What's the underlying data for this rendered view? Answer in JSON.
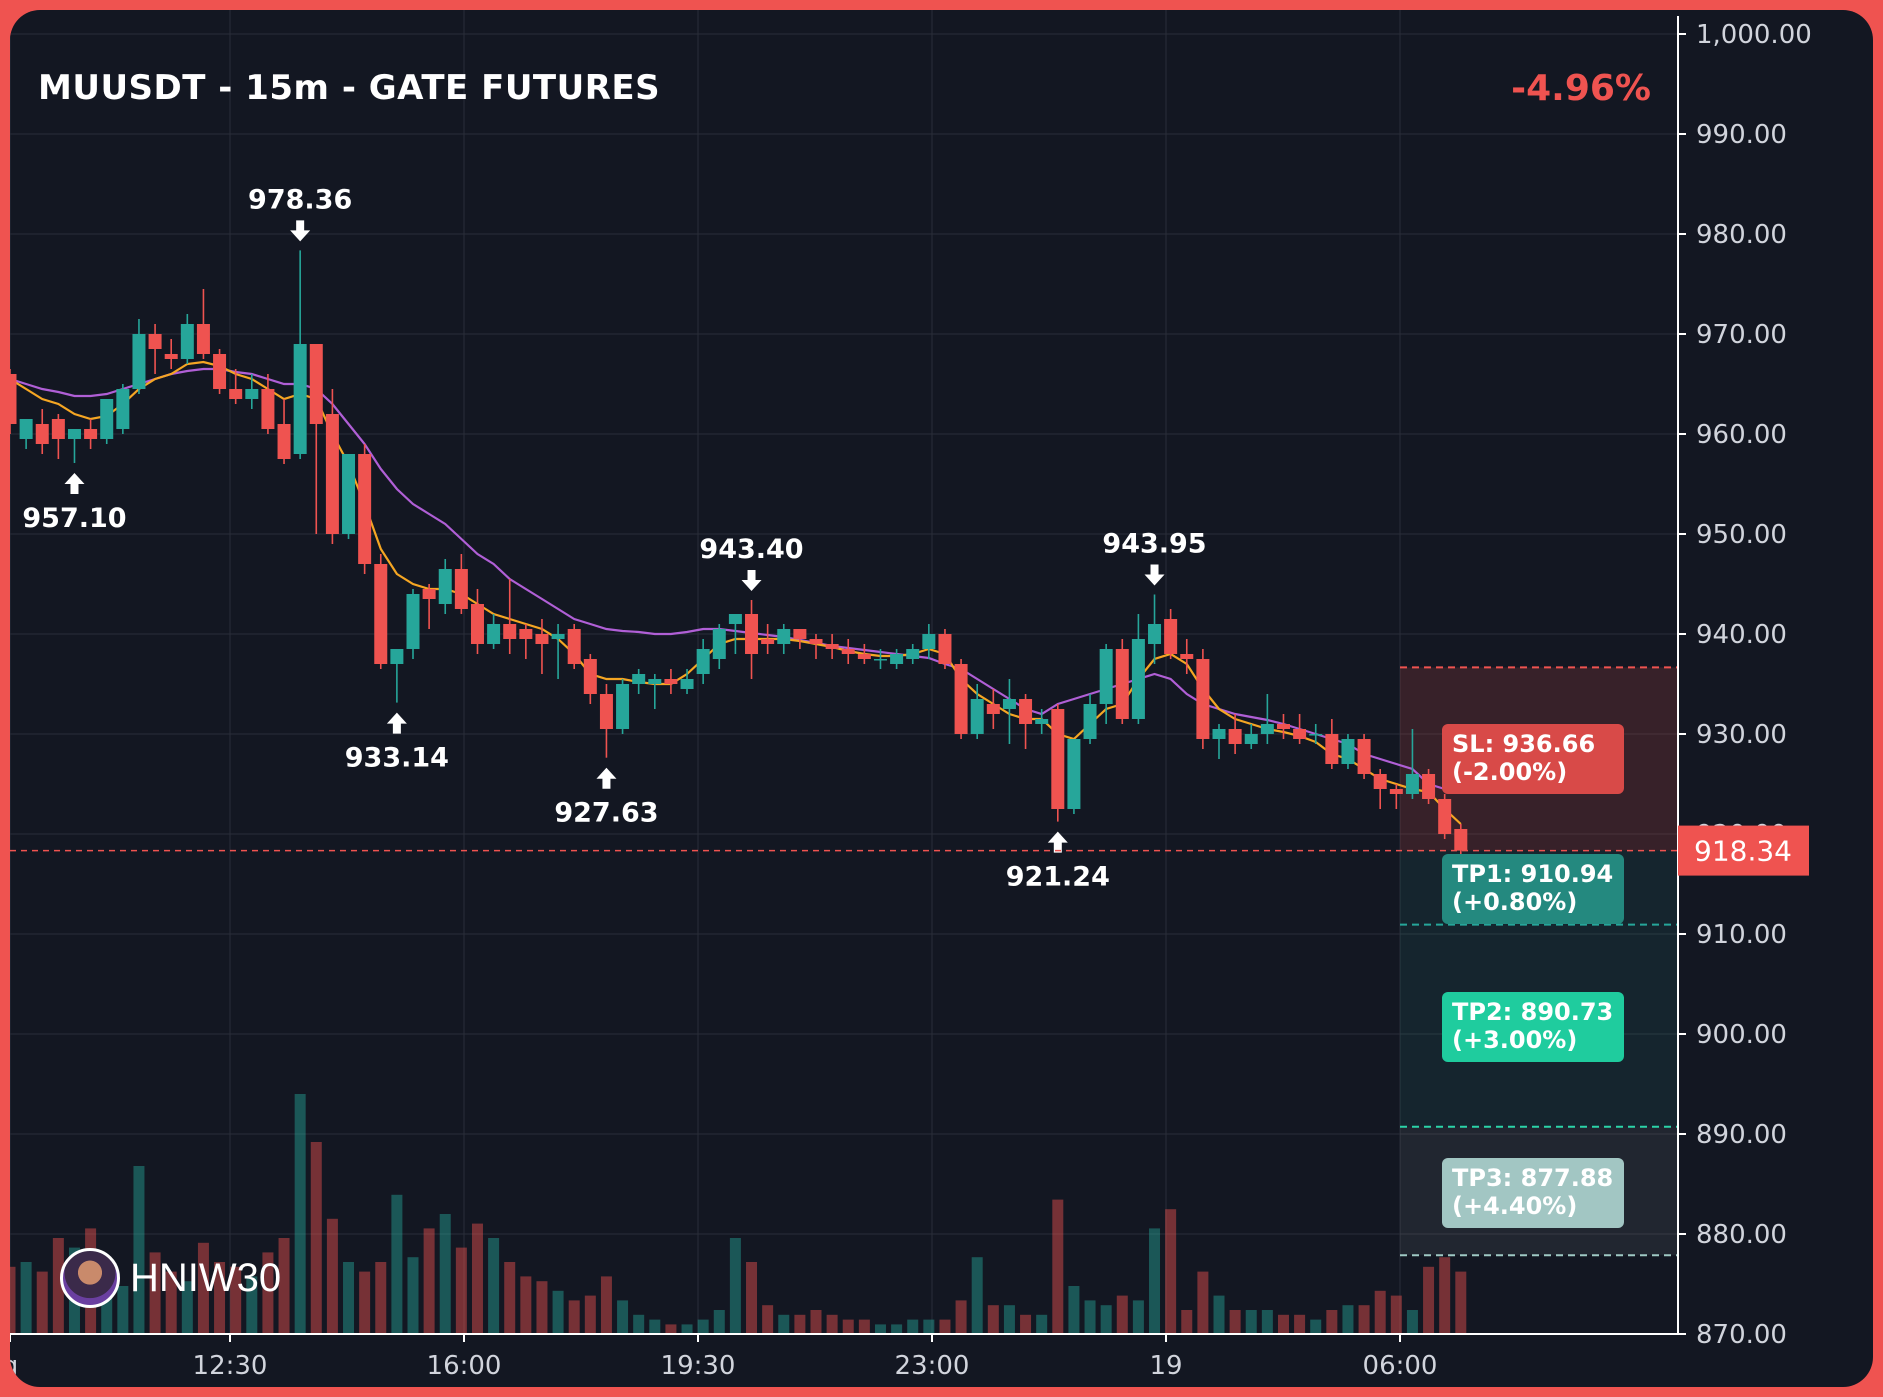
{
  "header": {
    "title": "MUUSDT - 15m - GATE FUTURES",
    "change": "-4.96%"
  },
  "watermark": {
    "label": "HNIW30",
    "icon": "avatar-icon"
  },
  "colors": {
    "background": "#131722",
    "frame": "#ef5350",
    "up": "#26a69a",
    "down": "#ef5350",
    "ema_fast": "#f5a623",
    "ema_slow": "#b05fd6",
    "grid": "#2a2e39",
    "axis_text": "#d1d4dc"
  },
  "chart_data": {
    "type": "candlestick",
    "title": "MUUSDT - 15m - GATE FUTURES",
    "y_axis": {
      "ylim": [
        870,
        1000
      ],
      "ticks": [
        "1,000.00",
        "990.00",
        "980.00",
        "970.00",
        "960.00",
        "950.00",
        "940.00",
        "930.00",
        "920.00",
        "910.00",
        "900.00",
        "890.00",
        "880.00",
        "870.00"
      ]
    },
    "x_axis": {
      "tick_labels": [
        "g",
        "12:30",
        "16:00",
        "19:30",
        "23:00",
        "19",
        "06:00"
      ]
    },
    "grid": true,
    "candles": [
      {
        "o": 966.0,
        "h": 966.5,
        "c": 961.0,
        "l": 960.0,
        "v": 0.28
      },
      {
        "o": 959.5,
        "h": 961.5,
        "c": 961.5,
        "l": 958.5,
        "v": 0.3
      },
      {
        "o": 961.0,
        "h": 962.5,
        "c": 959.0,
        "l": 958.0,
        "v": 0.26
      },
      {
        "o": 961.5,
        "h": 962.0,
        "c": 959.5,
        "l": 957.5,
        "v": 0.4
      },
      {
        "o": 959.5,
        "h": 960.0,
        "c": 960.5,
        "l": 957.1,
        "v": 0.36
      },
      {
        "o": 960.5,
        "h": 961.5,
        "c": 959.5,
        "l": 958.5,
        "v": 0.44
      },
      {
        "o": 959.5,
        "h": 963.5,
        "c": 963.5,
        "l": 959.0,
        "v": 0.24
      },
      {
        "o": 960.5,
        "h": 965.0,
        "c": 964.5,
        "l": 960.0,
        "v": 0.2
      },
      {
        "o": 964.5,
        "h": 971.5,
        "c": 970.0,
        "l": 964.0,
        "v": 0.7
      },
      {
        "o": 970.0,
        "h": 971.0,
        "c": 968.5,
        "l": 966.0,
        "v": 0.34
      },
      {
        "o": 968.0,
        "h": 969.5,
        "c": 967.5,
        "l": 966.5,
        "v": 0.26
      },
      {
        "o": 967.5,
        "h": 972.0,
        "c": 971.0,
        "l": 967.0,
        "v": 0.22
      },
      {
        "o": 971.0,
        "h": 974.5,
        "c": 968.0,
        "l": 967.5,
        "v": 0.38
      },
      {
        "o": 968.0,
        "h": 968.5,
        "c": 964.5,
        "l": 964.0,
        "v": 0.3
      },
      {
        "o": 964.5,
        "h": 966.5,
        "c": 963.5,
        "l": 963.0,
        "v": 0.28
      },
      {
        "o": 963.5,
        "h": 966.0,
        "c": 964.5,
        "l": 962.5,
        "v": 0.24
      },
      {
        "o": 964.5,
        "h": 966.0,
        "c": 960.5,
        "l": 960.0,
        "v": 0.34
      },
      {
        "o": 961.0,
        "h": 963.5,
        "c": 957.5,
        "l": 957.0,
        "v": 0.4
      },
      {
        "o": 958.0,
        "h": 978.36,
        "c": 969.0,
        "l": 957.5,
        "v": 1.0
      },
      {
        "o": 969.0,
        "h": 969.0,
        "c": 961.0,
        "l": 950.0,
        "v": 0.8
      },
      {
        "o": 962.0,
        "h": 964.5,
        "c": 950.0,
        "l": 949.0,
        "v": 0.48
      },
      {
        "o": 950.0,
        "h": 958.0,
        "c": 958.0,
        "l": 949.5,
        "v": 0.3
      },
      {
        "o": 958.0,
        "h": 959.0,
        "c": 947.0,
        "l": 946.0,
        "v": 0.26
      },
      {
        "o": 947.0,
        "h": 948.0,
        "c": 937.0,
        "l": 936.5,
        "v": 0.3
      },
      {
        "o": 937.0,
        "h": 938.5,
        "c": 938.5,
        "l": 933.14,
        "v": 0.58
      },
      {
        "o": 938.5,
        "h": 944.5,
        "c": 944.0,
        "l": 937.5,
        "v": 0.32
      },
      {
        "o": 944.5,
        "h": 945.0,
        "c": 943.5,
        "l": 940.5,
        "v": 0.44
      },
      {
        "o": 943.0,
        "h": 947.5,
        "c": 946.5,
        "l": 942.0,
        "v": 0.5
      },
      {
        "o": 946.5,
        "h": 948.0,
        "c": 942.5,
        "l": 942.0,
        "v": 0.36
      },
      {
        "o": 943.0,
        "h": 944.5,
        "c": 939.0,
        "l": 938.0,
        "v": 0.46
      },
      {
        "o": 939.0,
        "h": 942.0,
        "c": 941.0,
        "l": 938.5,
        "v": 0.4
      },
      {
        "o": 941.0,
        "h": 945.5,
        "c": 939.5,
        "l": 938.0,
        "v": 0.3
      },
      {
        "o": 940.5,
        "h": 941.0,
        "c": 939.5,
        "l": 937.5,
        "v": 0.24
      },
      {
        "o": 940.0,
        "h": 941.5,
        "c": 939.0,
        "l": 936.0,
        "v": 0.22
      },
      {
        "o": 939.5,
        "h": 941.0,
        "c": 940.0,
        "l": 935.5,
        "v": 0.18
      },
      {
        "o": 940.5,
        "h": 941.0,
        "c": 937.0,
        "l": 936.5,
        "v": 0.14
      },
      {
        "o": 937.5,
        "h": 938.0,
        "c": 934.0,
        "l": 933.0,
        "v": 0.16
      },
      {
        "o": 934.0,
        "h": 935.0,
        "c": 930.5,
        "l": 927.63,
        "v": 0.24
      },
      {
        "o": 930.5,
        "h": 935.5,
        "c": 935.0,
        "l": 930.0,
        "v": 0.14
      },
      {
        "o": 935.0,
        "h": 936.5,
        "c": 936.0,
        "l": 934.0,
        "v": 0.08
      },
      {
        "o": 935.0,
        "h": 936.0,
        "c": 935.5,
        "l": 932.5,
        "v": 0.06
      },
      {
        "o": 935.5,
        "h": 936.5,
        "c": 935.0,
        "l": 934.0,
        "v": 0.04
      },
      {
        "o": 934.5,
        "h": 936.5,
        "c": 935.5,
        "l": 934.0,
        "v": 0.04
      },
      {
        "o": 936.0,
        "h": 939.5,
        "c": 938.5,
        "l": 935.0,
        "v": 0.06
      },
      {
        "o": 937.5,
        "h": 941.0,
        "c": 940.5,
        "l": 936.5,
        "v": 0.1
      },
      {
        "o": 941.0,
        "h": 941.5,
        "c": 942.0,
        "l": 938.0,
        "v": 0.4
      },
      {
        "o": 942.0,
        "h": 943.4,
        "c": 938.0,
        "l": 935.5,
        "v": 0.3
      },
      {
        "o": 939.5,
        "h": 941.0,
        "c": 939.0,
        "l": 938.0,
        "v": 0.12
      },
      {
        "o": 939.0,
        "h": 941.0,
        "c": 940.5,
        "l": 938.0,
        "v": 0.08
      },
      {
        "o": 940.5,
        "h": 940.5,
        "c": 939.5,
        "l": 938.5,
        "v": 0.08
      },
      {
        "o": 939.5,
        "h": 940.0,
        "c": 939.0,
        "l": 937.5,
        "v": 0.1
      },
      {
        "o": 939.0,
        "h": 940.0,
        "c": 938.5,
        "l": 937.5,
        "v": 0.08
      },
      {
        "o": 938.5,
        "h": 939.5,
        "c": 938.0,
        "l": 937.0,
        "v": 0.06
      },
      {
        "o": 938.0,
        "h": 939.0,
        "c": 937.5,
        "l": 937.0,
        "v": 0.06
      },
      {
        "o": 937.5,
        "h": 938.5,
        "c": 937.5,
        "l": 936.5,
        "v": 0.04
      },
      {
        "o": 937.0,
        "h": 938.5,
        "c": 938.0,
        "l": 936.5,
        "v": 0.04
      },
      {
        "o": 937.5,
        "h": 939.0,
        "c": 938.5,
        "l": 937.0,
        "v": 0.06
      },
      {
        "o": 938.5,
        "h": 941.0,
        "c": 940.0,
        "l": 937.5,
        "v": 0.06
      },
      {
        "o": 940.0,
        "h": 940.5,
        "c": 937.0,
        "l": 936.5,
        "v": 0.06
      },
      {
        "o": 937.0,
        "h": 937.5,
        "c": 930.0,
        "l": 929.5,
        "v": 0.14
      },
      {
        "o": 930.0,
        "h": 935.0,
        "c": 933.5,
        "l": 929.5,
        "v": 0.32
      },
      {
        "o": 933.0,
        "h": 934.5,
        "c": 932.0,
        "l": 930.5,
        "v": 0.12
      },
      {
        "o": 932.5,
        "h": 935.5,
        "c": 933.5,
        "l": 929.0,
        "v": 0.12
      },
      {
        "o": 933.5,
        "h": 934.0,
        "c": 931.0,
        "l": 928.5,
        "v": 0.08
      },
      {
        "o": 931.0,
        "h": 932.5,
        "c": 931.5,
        "l": 930.0,
        "v": 0.08
      },
      {
        "o": 932.5,
        "h": 933.0,
        "c": 922.5,
        "l": 921.24,
        "v": 0.56
      },
      {
        "o": 922.5,
        "h": 929.5,
        "c": 929.5,
        "l": 922.0,
        "v": 0.2
      },
      {
        "o": 929.5,
        "h": 934.0,
        "c": 933.0,
        "l": 929.0,
        "v": 0.14
      },
      {
        "o": 933.0,
        "h": 939.0,
        "c": 938.5,
        "l": 931.0,
        "v": 0.12
      },
      {
        "o": 938.5,
        "h": 939.5,
        "c": 931.5,
        "l": 931.0,
        "v": 0.16
      },
      {
        "o": 931.5,
        "h": 942.0,
        "c": 939.5,
        "l": 931.0,
        "v": 0.14
      },
      {
        "o": 939.0,
        "h": 943.95,
        "c": 941.0,
        "l": 937.0,
        "v": 0.44
      },
      {
        "o": 941.5,
        "h": 942.5,
        "c": 938.0,
        "l": 937.5,
        "v": 0.52
      },
      {
        "o": 938.0,
        "h": 939.5,
        "c": 937.5,
        "l": 936.0,
        "v": 0.1
      },
      {
        "o": 937.5,
        "h": 938.5,
        "c": 929.5,
        "l": 928.5,
        "v": 0.26
      },
      {
        "o": 929.5,
        "h": 931.0,
        "c": 930.5,
        "l": 927.5,
        "v": 0.16
      },
      {
        "o": 930.5,
        "h": 932.0,
        "c": 929.0,
        "l": 928.0,
        "v": 0.1
      },
      {
        "o": 929.0,
        "h": 931.0,
        "c": 930.0,
        "l": 928.5,
        "v": 0.1
      },
      {
        "o": 930.0,
        "h": 934.0,
        "c": 931.0,
        "l": 929.0,
        "v": 0.1
      },
      {
        "o": 931.0,
        "h": 932.0,
        "c": 930.5,
        "l": 929.5,
        "v": 0.08
      },
      {
        "o": 930.5,
        "h": 932.0,
        "c": 929.5,
        "l": 929.0,
        "v": 0.08
      },
      {
        "o": 930.0,
        "h": 931.0,
        "c": 930.0,
        "l": 929.0,
        "v": 0.06
      },
      {
        "o": 930.0,
        "h": 931.5,
        "c": 927.0,
        "l": 926.5,
        "v": 0.1
      },
      {
        "o": 927.0,
        "h": 930.0,
        "c": 929.5,
        "l": 926.5,
        "v": 0.12
      },
      {
        "o": 929.5,
        "h": 930.0,
        "c": 926.0,
        "l": 925.5,
        "v": 0.12
      },
      {
        "o": 926.0,
        "h": 926.5,
        "c": 924.5,
        "l": 922.5,
        "v": 0.18
      },
      {
        "o": 924.5,
        "h": 925.0,
        "c": 924.0,
        "l": 922.5,
        "v": 0.16
      },
      {
        "o": 924.0,
        "h": 930.5,
        "c": 926.0,
        "l": 923.5,
        "v": 0.1
      },
      {
        "o": 926.0,
        "h": 926.5,
        "c": 923.5,
        "l": 923.0,
        "v": 0.28
      },
      {
        "o": 923.5,
        "h": 924.0,
        "c": 920.0,
        "l": 919.5,
        "v": 0.32
      },
      {
        "o": 920.5,
        "h": 921.0,
        "c": 918.34,
        "l": 918.0,
        "v": 0.26
      }
    ],
    "ema_fast": [
      965.5,
      964.5,
      963.5,
      963.0,
      962.0,
      961.5,
      961.8,
      963.0,
      964.5,
      965.5,
      966.0,
      967.0,
      967.2,
      966.8,
      966.0,
      965.5,
      964.5,
      963.5,
      964.0,
      963.5,
      960.0,
      957.0,
      953.0,
      948.5,
      946.0,
      945.0,
      944.5,
      944.5,
      944.0,
      943.0,
      942.0,
      941.5,
      941.0,
      940.5,
      939.5,
      938.0,
      936.0,
      935.5,
      935.5,
      935.2,
      935.0,
      935.0,
      936.0,
      937.5,
      939.0,
      939.5,
      939.5,
      939.5,
      939.5,
      939.3,
      939.0,
      938.7,
      938.3,
      938.0,
      937.8,
      937.8,
      938.0,
      938.5,
      938.0,
      935.5,
      934.0,
      933.0,
      932.0,
      931.5,
      931.5,
      930.0,
      929.5,
      931.0,
      932.5,
      933.0,
      935.5,
      937.5,
      938.0,
      937.0,
      934.5,
      932.5,
      931.5,
      931.0,
      930.5,
      930.2,
      929.8,
      929.2,
      928.0,
      927.5,
      926.5,
      925.5,
      925.0,
      924.5,
      924.2,
      922.5,
      921.0
    ],
    "ema_slow": [
      965.5,
      965.0,
      964.5,
      964.2,
      963.8,
      963.8,
      964.0,
      964.5,
      965.0,
      965.5,
      966.0,
      966.3,
      966.5,
      966.5,
      966.2,
      966.0,
      965.5,
      965.0,
      965.0,
      964.5,
      963.0,
      961.0,
      959.0,
      956.5,
      954.5,
      953.0,
      952.0,
      951.0,
      949.5,
      948.0,
      947.0,
      945.5,
      944.5,
      943.5,
      942.5,
      941.5,
      941.0,
      940.5,
      940.3,
      940.2,
      940.0,
      940.0,
      940.2,
      940.5,
      940.5,
      940.3,
      940.1,
      939.9,
      939.7,
      939.4,
      939.1,
      938.8,
      938.6,
      938.4,
      938.2,
      938.0,
      937.8,
      937.6,
      937.0,
      936.5,
      935.5,
      934.5,
      933.5,
      932.5,
      932.0,
      933.0,
      933.5,
      934.0,
      934.5,
      935.0,
      935.5,
      936.0,
      935.5,
      934.0,
      933.0,
      932.5,
      932.0,
      931.7,
      931.4,
      931.0,
      930.5,
      930.0,
      929.5,
      929.0,
      928.0,
      927.5,
      927.0,
      926.5,
      925.0,
      924.5
    ],
    "annotations": [
      {
        "label": "957.10",
        "type": "low",
        "candle": 4
      },
      {
        "label": "978.36",
        "type": "high",
        "candle": 18
      },
      {
        "label": "933.14",
        "type": "low",
        "candle": 24
      },
      {
        "label": "927.63",
        "type": "low",
        "candle": 37
      },
      {
        "label": "943.40",
        "type": "high",
        "candle": 46
      },
      {
        "label": "921.24",
        "type": "low",
        "candle": 65
      },
      {
        "label": "943.95",
        "type": "high",
        "candle": 71
      }
    ],
    "current_price": {
      "value": 918.34,
      "label": "918.34"
    },
    "levels": {
      "sl": {
        "price": 936.66,
        "label": "SL: 936.66",
        "pct": "(-2.00%)"
      },
      "tp1": {
        "price": 910.94,
        "label": "TP1: 910.94",
        "pct": "(+0.80%)"
      },
      "tp2": {
        "price": 890.73,
        "label": "TP2: 890.73",
        "pct": "(+3.00%)"
      },
      "tp3": {
        "price": 877.88,
        "label": "TP3: 877.88",
        "pct": "(+4.40%)"
      }
    }
  }
}
